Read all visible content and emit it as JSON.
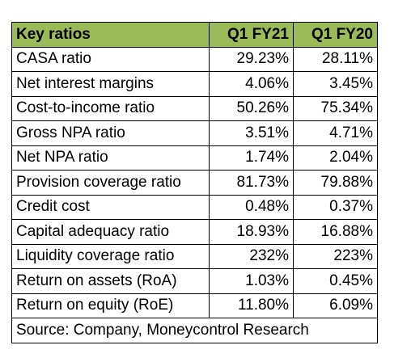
{
  "header": {
    "metric": "Key ratios",
    "col1": "Q1 FY21",
    "col2": "Q1 FY20"
  },
  "rows": [
    {
      "metric": "CASA ratio",
      "q1fy21": "29.23%",
      "q1fy20": "28.11%"
    },
    {
      "metric": "Net interest margins",
      "q1fy21": "4.06%",
      "q1fy20": "3.45%"
    },
    {
      "metric": "Cost-to-income ratio",
      "q1fy21": "50.26%",
      "q1fy20": "75.34%"
    },
    {
      "metric": "Gross NPA ratio",
      "q1fy21": "3.51%",
      "q1fy20": "4.71%"
    },
    {
      "metric": "Net NPA ratio",
      "q1fy21": "1.74%",
      "q1fy20": "2.04%"
    },
    {
      "metric": "Provision coverage ratio",
      "q1fy21": "81.73%",
      "q1fy20": "79.88%"
    },
    {
      "metric": "Credit cost",
      "q1fy21": "0.48%",
      "q1fy20": "0.37%"
    },
    {
      "metric": "Capital adequacy ratio",
      "q1fy21": "18.93%",
      "q1fy20": "16.88%"
    },
    {
      "metric": "Liquidity coverage ratio",
      "q1fy21": "232%",
      "q1fy20": "223%"
    },
    {
      "metric": "Return on assets (RoA)",
      "q1fy21": "1.03%",
      "q1fy20": "0.45%"
    },
    {
      "metric": "Return on equity (RoE)",
      "q1fy21": "11.80%",
      "q1fy20": "6.09%"
    }
  ],
  "source": "Source: Company, Moneycontrol Research",
  "colors": {
    "header_bg": "#9bbb59",
    "border": "#000000"
  }
}
